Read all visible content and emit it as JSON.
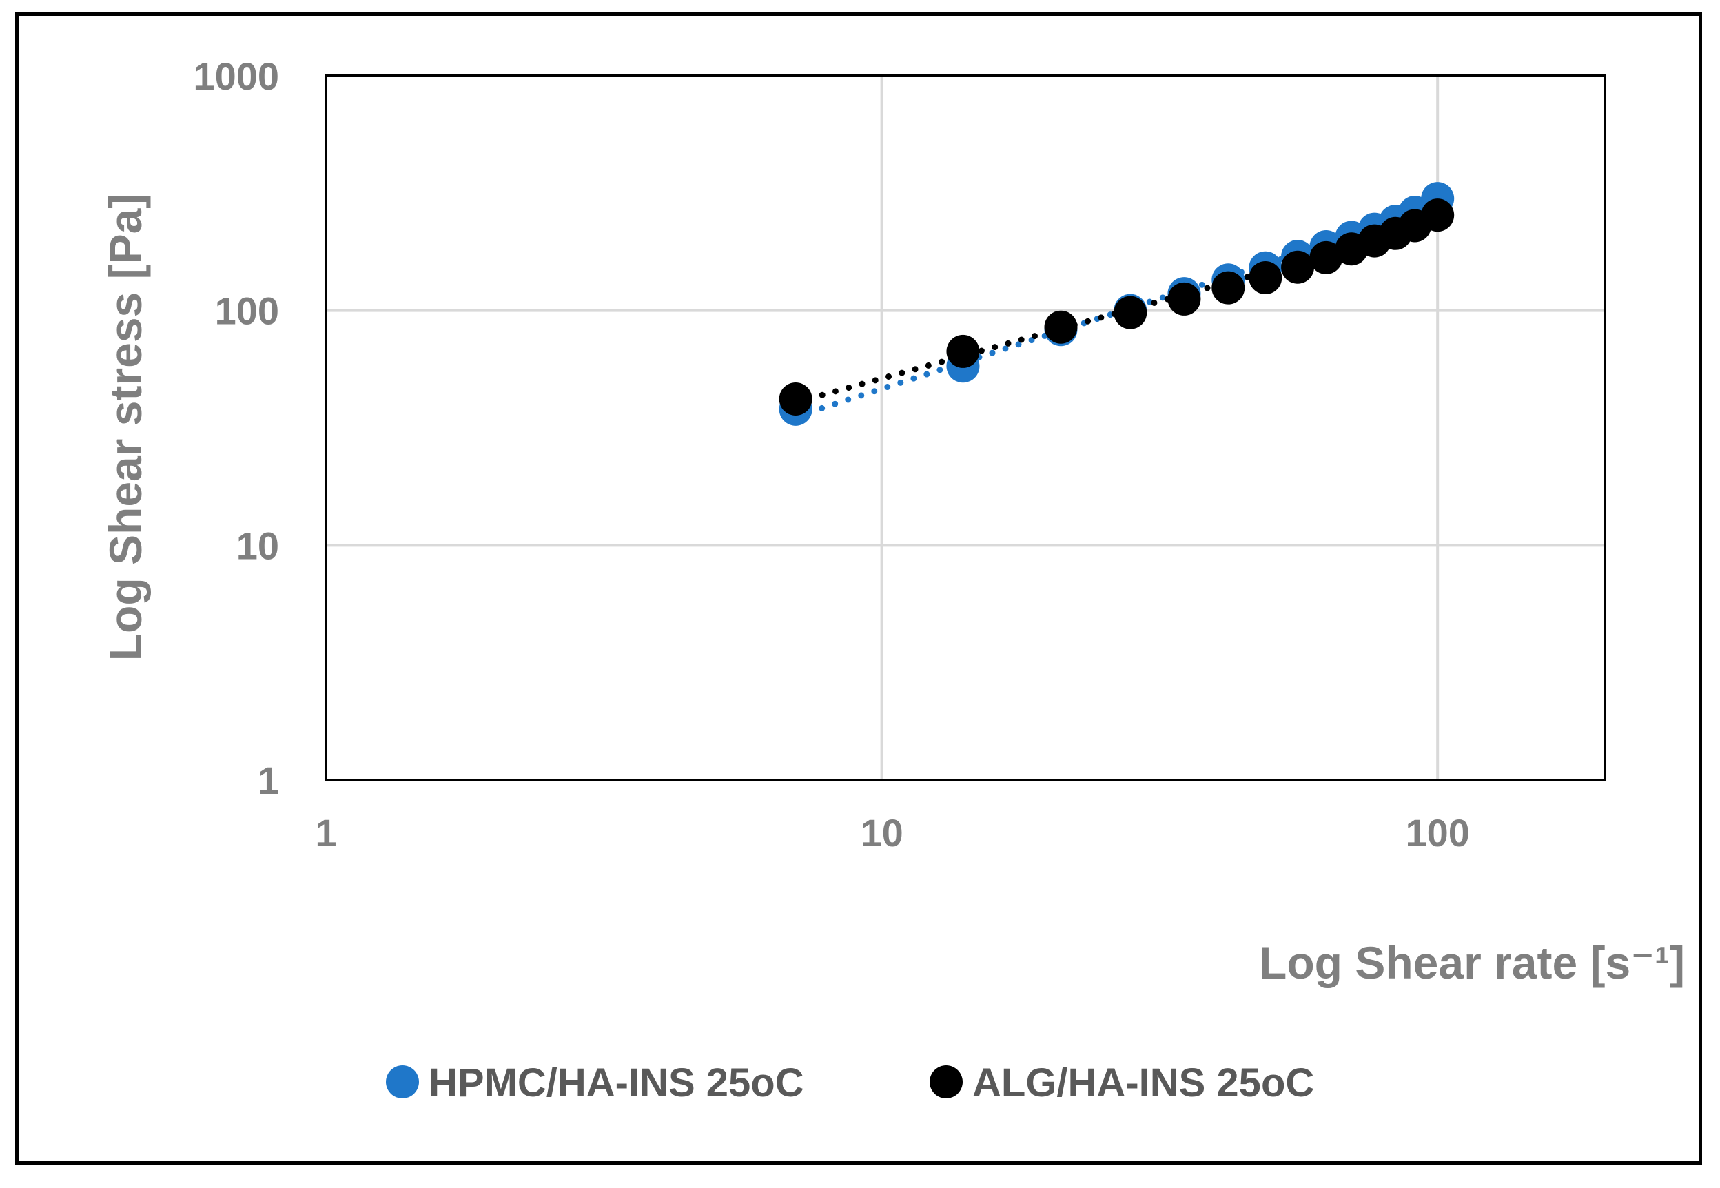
{
  "chart_data": {
    "type": "scatter",
    "xlabel": "Log Shear rate [s⁻¹]",
    "ylabel": "Log Shear stress [Pa]",
    "x_scale": "log",
    "y_scale": "log",
    "xlim": [
      1,
      200
    ],
    "ylim": [
      1,
      1000
    ],
    "x_ticks": [
      "1",
      "10",
      "100"
    ],
    "y_ticks": [
      "1",
      "10",
      "100",
      "1000"
    ],
    "grid": true,
    "legend_position": "bottom",
    "trendline": "dotted",
    "series": [
      {
        "name": "HPMC/HA-INS 25oC",
        "color": "#1f77c9",
        "x": [
          7,
          14,
          21,
          28,
          35,
          42,
          49,
          56,
          63,
          70,
          77,
          84,
          91,
          100
        ],
        "y": [
          38,
          58,
          83,
          100,
          118,
          135,
          152,
          170,
          187,
          205,
          222,
          240,
          262,
          300
        ]
      },
      {
        "name": "ALG/HA-INS 25oC",
        "color": "#000000",
        "x": [
          7,
          14,
          21,
          28,
          35,
          42,
          49,
          56,
          63,
          70,
          77,
          84,
          91,
          100
        ],
        "y": [
          42,
          67,
          85,
          98,
          112,
          125,
          138,
          153,
          168,
          183,
          198,
          213,
          230,
          255
        ]
      }
    ]
  }
}
